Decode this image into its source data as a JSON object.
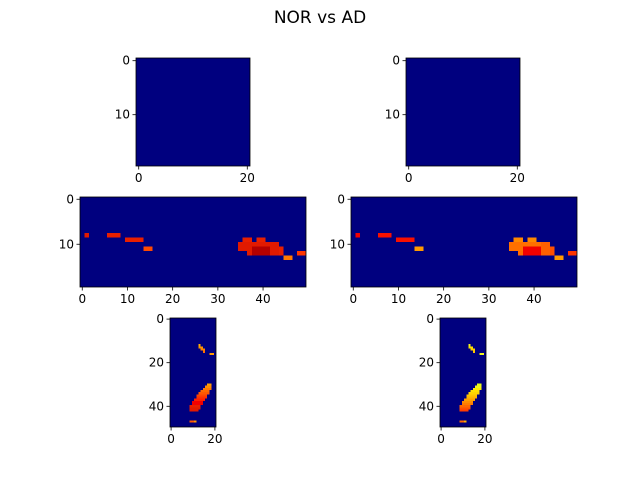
{
  "figure": {
    "title": "NOR vs AD"
  },
  "chart_data": [
    {
      "type": "heatmap",
      "shape": [
        20,
        21
      ],
      "xticks": [
        0,
        20
      ],
      "yticks": [
        0,
        10
      ],
      "background": "#00007f",
      "blobs": []
    },
    {
      "type": "heatmap",
      "shape": [
        20,
        21
      ],
      "xticks": [
        0,
        20
      ],
      "yticks": [
        0,
        10
      ],
      "background": "#00007f",
      "blobs": []
    },
    {
      "type": "heatmap",
      "shape": [
        20,
        50
      ],
      "xticks": [
        0,
        10,
        20,
        30,
        40
      ],
      "yticks": [
        0,
        10
      ],
      "background": "#00007f",
      "blobs": [
        {
          "row": 8,
          "col": 1,
          "w": 1,
          "h": 1,
          "color": "#e11a00"
        },
        {
          "row": 8,
          "col": 6,
          "w": 3,
          "h": 1,
          "color": "#e81f00"
        },
        {
          "row": 9,
          "col": 10,
          "w": 4,
          "h": 1,
          "color": "#e81f00"
        },
        {
          "row": 11,
          "col": 14,
          "w": 2,
          "h": 1,
          "color": "#ff4a00"
        },
        {
          "row": 10,
          "col": 35,
          "w": 7,
          "h": 2,
          "color": "#e11a00"
        },
        {
          "row": 9,
          "col": 36,
          "w": 2,
          "h": 1,
          "color": "#e81f00"
        },
        {
          "row": 9,
          "col": 39,
          "w": 2,
          "h": 1,
          "color": "#e81f00"
        },
        {
          "row": 10,
          "col": 42,
          "w": 2,
          "h": 3,
          "color": "#e11a00"
        },
        {
          "row": 11,
          "col": 38,
          "w": 4,
          "h": 2,
          "color": "#b40000"
        },
        {
          "row": 11,
          "col": 44,
          "w": 1,
          "h": 2,
          "color": "#e81f00"
        },
        {
          "row": 12,
          "col": 37,
          "w": 1,
          "h": 1,
          "color": "#e11a00"
        },
        {
          "row": 13,
          "col": 45,
          "w": 2,
          "h": 1,
          "color": "#ff7800"
        },
        {
          "row": 12,
          "col": 48,
          "w": 2,
          "h": 1,
          "color": "#ff3500"
        }
      ]
    },
    {
      "type": "heatmap",
      "shape": [
        20,
        50
      ],
      "xticks": [
        0,
        10,
        20,
        30,
        40
      ],
      "yticks": [
        0,
        10
      ],
      "background": "#00007f",
      "blobs": [
        {
          "row": 8,
          "col": 1,
          "w": 1,
          "h": 1,
          "color": "#f20000"
        },
        {
          "row": 8,
          "col": 6,
          "w": 3,
          "h": 1,
          "color": "#f81000"
        },
        {
          "row": 9,
          "col": 10,
          "w": 4,
          "h": 1,
          "color": "#f81000"
        },
        {
          "row": 11,
          "col": 14,
          "w": 2,
          "h": 1,
          "color": "#ff9a00"
        },
        {
          "row": 10,
          "col": 35,
          "w": 7,
          "h": 2,
          "color": "#ff7000"
        },
        {
          "row": 9,
          "col": 36,
          "w": 2,
          "h": 1,
          "color": "#ff8800"
        },
        {
          "row": 9,
          "col": 39,
          "w": 2,
          "h": 1,
          "color": "#ff8800"
        },
        {
          "row": 10,
          "col": 42,
          "w": 2,
          "h": 3,
          "color": "#ff6000"
        },
        {
          "row": 11,
          "col": 38,
          "w": 4,
          "h": 2,
          "color": "#f20000"
        },
        {
          "row": 11,
          "col": 44,
          "w": 1,
          "h": 2,
          "color": "#ff5000"
        },
        {
          "row": 12,
          "col": 37,
          "w": 1,
          "h": 1,
          "color": "#ff6a00"
        },
        {
          "row": 13,
          "col": 45,
          "w": 2,
          "h": 1,
          "color": "#ff9a00"
        },
        {
          "row": 12,
          "col": 48,
          "w": 2,
          "h": 1,
          "color": "#ff3500"
        }
      ]
    },
    {
      "type": "heatmap",
      "shape": [
        50,
        21
      ],
      "xticks": [
        0,
        20
      ],
      "yticks": [
        0,
        20,
        40
      ],
      "background": "#00007f",
      "blobs": [
        {
          "row": 12,
          "col": 13,
          "w": 1,
          "h": 1,
          "color": "#ffae00"
        },
        {
          "row": 13,
          "col": 13,
          "w": 2,
          "h": 1,
          "color": "#ff9400"
        },
        {
          "row": 14,
          "col": 14,
          "w": 2,
          "h": 1,
          "color": "#ff8400"
        },
        {
          "row": 15,
          "col": 15,
          "w": 1,
          "h": 1,
          "color": "#ff7000"
        },
        {
          "row": 16,
          "col": 18,
          "w": 2,
          "h": 1,
          "color": "#ff9a00"
        },
        {
          "row": 30,
          "col": 17,
          "w": 2,
          "h": 1,
          "color": "#ffa000"
        },
        {
          "row": 31,
          "col": 16,
          "w": 3,
          "h": 1,
          "color": "#ff8c00"
        },
        {
          "row": 32,
          "col": 15,
          "w": 4,
          "h": 1,
          "color": "#ff7800"
        },
        {
          "row": 33,
          "col": 14,
          "w": 4,
          "h": 1,
          "color": "#ff6800"
        },
        {
          "row": 34,
          "col": 13,
          "w": 5,
          "h": 1,
          "color": "#ff5800"
        },
        {
          "row": 35,
          "col": 12,
          "w": 5,
          "h": 1,
          "color": "#ff4400"
        },
        {
          "row": 36,
          "col": 12,
          "w": 5,
          "h": 1,
          "color": "#ff3000"
        },
        {
          "row": 37,
          "col": 11,
          "w": 5,
          "h": 1,
          "color": "#ff2000"
        },
        {
          "row": 38,
          "col": 10,
          "w": 5,
          "h": 1,
          "color": "#f20000"
        },
        {
          "row": 39,
          "col": 10,
          "w": 5,
          "h": 1,
          "color": "#f20000"
        },
        {
          "row": 40,
          "col": 9,
          "w": 5,
          "h": 1,
          "color": "#e81f00"
        },
        {
          "row": 41,
          "col": 9,
          "w": 5,
          "h": 1,
          "color": "#e11a00"
        },
        {
          "row": 42,
          "col": 9,
          "w": 4,
          "h": 1,
          "color": "#e11a00"
        },
        {
          "row": 47,
          "col": 9,
          "w": 2,
          "h": 1,
          "color": "#ff5800"
        },
        {
          "row": 47,
          "col": 11,
          "w": 1,
          "h": 1,
          "color": "#ff9400"
        }
      ]
    },
    {
      "type": "heatmap",
      "shape": [
        50,
        21
      ],
      "xticks": [
        0,
        20
      ],
      "yticks": [
        0,
        20,
        40
      ],
      "background": "#00007f",
      "blobs": [
        {
          "row": 12,
          "col": 13,
          "w": 1,
          "h": 1,
          "color": "#f0f51c"
        },
        {
          "row": 13,
          "col": 13,
          "w": 2,
          "h": 1,
          "color": "#ffe200"
        },
        {
          "row": 14,
          "col": 14,
          "w": 2,
          "h": 1,
          "color": "#ffd000"
        },
        {
          "row": 15,
          "col": 15,
          "w": 1,
          "h": 1,
          "color": "#ffc400"
        },
        {
          "row": 16,
          "col": 18,
          "w": 2,
          "h": 1,
          "color": "#f0f51c"
        },
        {
          "row": 30,
          "col": 17,
          "w": 2,
          "h": 1,
          "color": "#e6ff12"
        },
        {
          "row": 31,
          "col": 16,
          "w": 3,
          "h": 1,
          "color": "#f0f51c"
        },
        {
          "row": 32,
          "col": 15,
          "w": 4,
          "h": 1,
          "color": "#ffec00"
        },
        {
          "row": 33,
          "col": 14,
          "w": 4,
          "h": 1,
          "color": "#ffe000"
        },
        {
          "row": 34,
          "col": 13,
          "w": 5,
          "h": 1,
          "color": "#ffd400"
        },
        {
          "row": 35,
          "col": 12,
          "w": 5,
          "h": 1,
          "color": "#ffc400"
        },
        {
          "row": 36,
          "col": 12,
          "w": 5,
          "h": 1,
          "color": "#ffb400"
        },
        {
          "row": 37,
          "col": 11,
          "w": 5,
          "h": 1,
          "color": "#ffa000"
        },
        {
          "row": 38,
          "col": 10,
          "w": 5,
          "h": 1,
          "color": "#ff8c00"
        },
        {
          "row": 39,
          "col": 10,
          "w": 5,
          "h": 1,
          "color": "#ff7c00"
        },
        {
          "row": 40,
          "col": 9,
          "w": 5,
          "h": 1,
          "color": "#ff6800"
        },
        {
          "row": 41,
          "col": 9,
          "w": 5,
          "h": 1,
          "color": "#ff5000"
        },
        {
          "row": 42,
          "col": 9,
          "w": 4,
          "h": 1,
          "color": "#ff3c00"
        },
        {
          "row": 47,
          "col": 9,
          "w": 2,
          "h": 1,
          "color": "#ff6800"
        },
        {
          "row": 47,
          "col": 11,
          "w": 1,
          "h": 1,
          "color": "#ffb000"
        }
      ]
    }
  ]
}
